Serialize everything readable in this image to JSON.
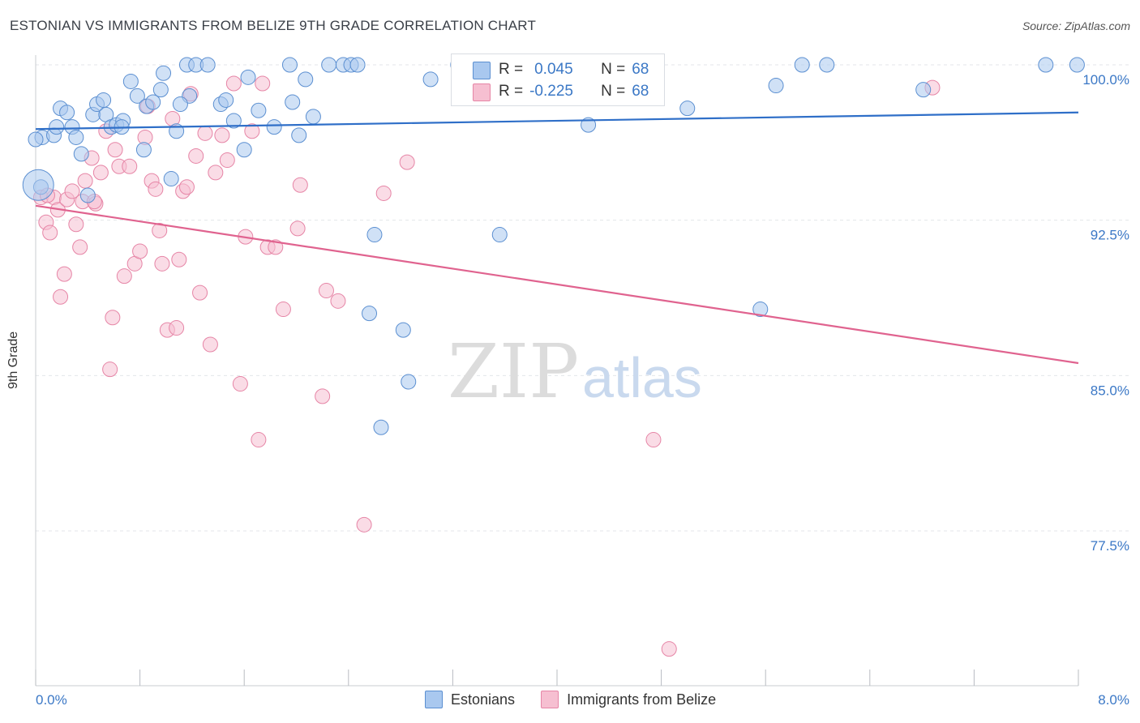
{
  "header": {
    "title": "ESTONIAN VS IMMIGRANTS FROM BELIZE 9TH GRADE CORRELATION CHART",
    "source": "Source: ZipAtlas.com"
  },
  "watermark": {
    "zip": "ZIP",
    "atlas": "atlas"
  },
  "legend": {
    "rows": [
      {
        "r_label": "R =",
        "r_value": "0.045",
        "n_label": "N =",
        "n_value": "68"
      },
      {
        "r_label": "R =",
        "r_value": "-0.225",
        "n_label": "N =",
        "n_value": "68"
      }
    ]
  },
  "bottom_legend": {
    "series_a": "Estonians",
    "series_b": "Immigrants from Belize"
  },
  "colors": {
    "blue_fill": "#a9c8ef",
    "blue_stroke": "#5b8fd1",
    "blue_line": "#2f6fc8",
    "pink_fill": "#f6bfd1",
    "pink_stroke": "#e685a6",
    "pink_line": "#e0638f",
    "tick_label": "#3b78c6",
    "grid": "#e3e6ea"
  },
  "chart_data": {
    "type": "scatter",
    "title": "ESTONIAN VS IMMIGRANTS FROM BELIZE 9TH GRADE CORRELATION CHART",
    "xlabel": "",
    "ylabel": "9th Grade",
    "xlim": [
      0,
      8
    ],
    "ylim": [
      71.2,
      100.6
    ],
    "x_tick_labels": [
      "0.0%",
      "8.0%"
    ],
    "y_ticks": [
      77.5,
      85.0,
      92.5,
      100.0
    ],
    "y_tick_labels": [
      "77.5%",
      "85.0%",
      "92.5%",
      "100.0%"
    ],
    "grid": true,
    "legend_position": "top-center",
    "series": [
      {
        "name": "Estonians",
        "r": 0.045,
        "n": 68,
        "trend": [
          [
            0,
            96.9
          ],
          [
            8,
            97.7
          ]
        ],
        "points": [
          [
            0.05,
            96.5
          ],
          [
            0.14,
            96.6
          ],
          [
            0.16,
            97.0
          ],
          [
            0.19,
            97.9
          ],
          [
            0.24,
            97.7
          ],
          [
            0.28,
            97.0
          ],
          [
            0.31,
            96.5
          ],
          [
            0.35,
            95.7
          ],
          [
            0.4,
            93.7
          ],
          [
            0.44,
            97.6
          ],
          [
            0.47,
            98.1
          ],
          [
            0.52,
            98.3
          ],
          [
            0.54,
            97.6
          ],
          [
            0.58,
            97.0
          ],
          [
            0.62,
            97.1
          ],
          [
            0.67,
            97.3
          ],
          [
            0.73,
            99.2
          ],
          [
            0.78,
            98.5
          ],
          [
            0.83,
            95.9
          ],
          [
            0.85,
            98.0
          ],
          [
            0.9,
            98.2
          ],
          [
            0.96,
            98.8
          ],
          [
            0.98,
            99.6
          ],
          [
            1.04,
            94.5
          ],
          [
            1.08,
            96.8
          ],
          [
            1.16,
            100.0
          ],
          [
            1.18,
            98.5
          ],
          [
            1.23,
            100.0
          ],
          [
            1.32,
            100.0
          ],
          [
            1.42,
            98.1
          ],
          [
            1.46,
            98.3
          ],
          [
            1.52,
            97.3
          ],
          [
            1.6,
            95.9
          ],
          [
            1.63,
            99.4
          ],
          [
            1.71,
            97.8
          ],
          [
            1.83,
            97.0
          ],
          [
            1.95,
            100.0
          ],
          [
            1.97,
            98.2
          ],
          [
            2.02,
            96.6
          ],
          [
            2.07,
            99.3
          ],
          [
            2.13,
            97.5
          ],
          [
            2.25,
            100.0
          ],
          [
            2.36,
            100.0
          ],
          [
            2.42,
            100.0
          ],
          [
            2.47,
            100.0
          ],
          [
            2.56,
            88.0
          ],
          [
            2.6,
            91.8
          ],
          [
            2.65,
            82.5
          ],
          [
            2.82,
            87.2
          ],
          [
            2.86,
            84.7
          ],
          [
            3.03,
            99.3
          ],
          [
            3.24,
            100.0
          ],
          [
            3.56,
            91.8
          ],
          [
            3.95,
            100.0
          ],
          [
            4.24,
            97.1
          ],
          [
            4.44,
            100.0
          ],
          [
            5.0,
            97.9
          ],
          [
            5.56,
            88.2
          ],
          [
            5.68,
            99.0
          ],
          [
            5.88,
            100.0
          ],
          [
            6.07,
            100.0
          ],
          [
            6.81,
            98.8
          ],
          [
            7.75,
            100.0
          ],
          [
            7.99,
            100.0
          ],
          [
            0.0,
            96.4
          ],
          [
            0.04,
            94.1
          ],
          [
            0.66,
            97.0
          ],
          [
            1.11,
            98.1
          ]
        ]
      },
      {
        "name": "Immigrants from Belize",
        "r": -0.225,
        "n": 68,
        "trend": [
          [
            0,
            93.2
          ],
          [
            8,
            85.6
          ]
        ],
        "points": [
          [
            0.04,
            93.6
          ],
          [
            0.08,
            92.4
          ],
          [
            0.11,
            91.9
          ],
          [
            0.14,
            93.6
          ],
          [
            0.17,
            93.0
          ],
          [
            0.19,
            88.8
          ],
          [
            0.22,
            89.9
          ],
          [
            0.24,
            93.5
          ],
          [
            0.28,
            93.9
          ],
          [
            0.31,
            92.3
          ],
          [
            0.34,
            91.2
          ],
          [
            0.36,
            93.4
          ],
          [
            0.38,
            94.4
          ],
          [
            0.43,
            95.5
          ],
          [
            0.46,
            93.3
          ],
          [
            0.5,
            94.8
          ],
          [
            0.54,
            96.8
          ],
          [
            0.57,
            85.3
          ],
          [
            0.59,
            87.8
          ],
          [
            0.61,
            95.9
          ],
          [
            0.64,
            95.1
          ],
          [
            0.68,
            89.8
          ],
          [
            0.72,
            95.1
          ],
          [
            0.76,
            90.4
          ],
          [
            0.8,
            91.0
          ],
          [
            0.84,
            96.5
          ],
          [
            0.86,
            98.0
          ],
          [
            0.89,
            94.4
          ],
          [
            0.92,
            94.0
          ],
          [
            0.95,
            92.0
          ],
          [
            0.97,
            90.4
          ],
          [
            1.01,
            87.2
          ],
          [
            1.05,
            97.4
          ],
          [
            1.08,
            87.3
          ],
          [
            1.1,
            90.6
          ],
          [
            1.13,
            93.9
          ],
          [
            1.16,
            94.1
          ],
          [
            1.19,
            98.6
          ],
          [
            1.23,
            95.6
          ],
          [
            1.26,
            89.0
          ],
          [
            1.3,
            96.7
          ],
          [
            1.34,
            86.5
          ],
          [
            1.38,
            94.8
          ],
          [
            1.43,
            96.6
          ],
          [
            1.47,
            95.4
          ],
          [
            1.52,
            99.1
          ],
          [
            1.57,
            84.6
          ],
          [
            1.61,
            91.7
          ],
          [
            1.66,
            96.8
          ],
          [
            1.71,
            81.9
          ],
          [
            1.74,
            99.1
          ],
          [
            1.78,
            91.2
          ],
          [
            1.84,
            91.2
          ],
          [
            1.9,
            88.2
          ],
          [
            2.01,
            92.1
          ],
          [
            2.03,
            94.2
          ],
          [
            2.2,
            84.0
          ],
          [
            2.23,
            89.1
          ],
          [
            2.32,
            88.6
          ],
          [
            2.52,
            77.8
          ],
          [
            2.67,
            93.8
          ],
          [
            2.85,
            95.3
          ],
          [
            4.74,
            81.9
          ],
          [
            4.86,
            71.8
          ],
          [
            4.4,
            100.0
          ],
          [
            6.88,
            98.9
          ],
          [
            0.09,
            93.7
          ],
          [
            0.45,
            93.4
          ]
        ]
      }
    ]
  }
}
